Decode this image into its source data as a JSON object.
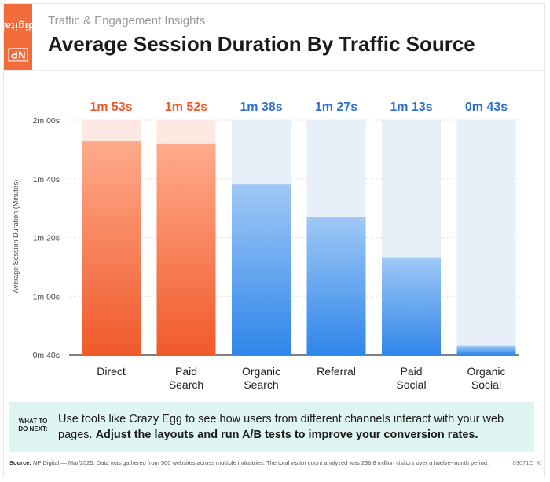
{
  "header": {
    "brand": "NP digital",
    "brand_np": "NP",
    "brand_word": "digital",
    "subtitle": "Traffic & Engagement Insights",
    "title": "Average Session Duration By Traffic Source"
  },
  "chart_data": {
    "type": "bar",
    "title": "Average Session Duration By Traffic Source",
    "ylabel": "Average Session Duration (Minutes)",
    "xlabel": "",
    "categories": [
      "Direct",
      "Paid Search",
      "Organic Search",
      "Referral",
      "Paid Social",
      "Organic Social"
    ],
    "category_lines": [
      [
        "Direct"
      ],
      [
        "Paid",
        "Search"
      ],
      [
        "Organic",
        "Search"
      ],
      [
        "Referral"
      ],
      [
        "Paid",
        "Social"
      ],
      [
        "Organic",
        "Social"
      ]
    ],
    "values_seconds": [
      113,
      112,
      98,
      87,
      73,
      43
    ],
    "value_labels": [
      "1m 53s",
      "1m 52s",
      "1m 38s",
      "1m 27s",
      "1m 13s",
      "0m 43s"
    ],
    "ylim_seconds": [
      40,
      120
    ],
    "yticks": [
      {
        "value": 120,
        "label": "2m 00s"
      },
      {
        "value": 100,
        "label": "1m 40s"
      },
      {
        "value": 80,
        "label": "1m 20s"
      },
      {
        "value": 60,
        "label": "1m 00s"
      },
      {
        "value": 40,
        "label": "0m 40s"
      }
    ],
    "colors": {
      "highlight_top": "#ffab8c",
      "highlight_bottom": "#f05a2a",
      "highlight_track": "#fde9e2",
      "highlight_label": "#f05a2a",
      "normal_top": "#9fc8f5",
      "normal_bottom": "#2f86ea",
      "normal_track": "#e7eff9",
      "normal_label": "#2f6fd0"
    },
    "highlighted": [
      true,
      true,
      false,
      false,
      false,
      false
    ]
  },
  "tip": {
    "label_line1": "WHAT TO",
    "label_line2": "DO NEXT:",
    "text": "Use tools like Crazy Egg to see how users from different channels interact with your web pages. ",
    "bold_text": "Adjust the layouts and run A/B tests to improve your conversion rates."
  },
  "footer": {
    "source_label": "Source:",
    "source_text": " NP Digital — Mar/2025. Data was gathered from 500 websites across multiple industries. The total visitor count analyzed was 236.8 million visitors over a twelve-month period.",
    "code": "03071C_K"
  }
}
